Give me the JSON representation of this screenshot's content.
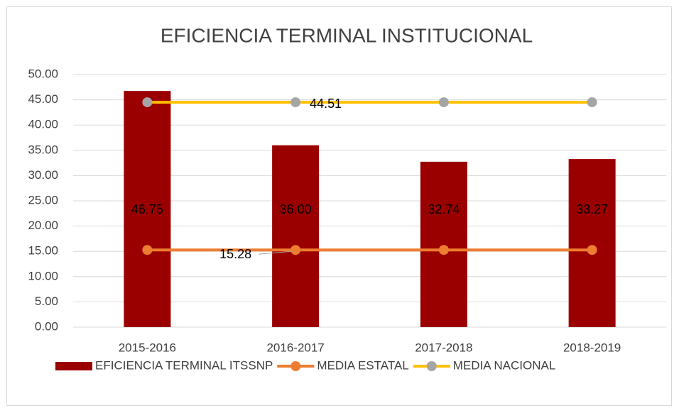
{
  "chart_data": {
    "type": "bar",
    "title": "EFICIENCIA TERMINAL INSTITUCIONAL",
    "categories": [
      "2015-2016",
      "2016-2017",
      "2017-2018",
      "2018-2019"
    ],
    "series": [
      {
        "name": "EFICIENCIA TERMINAL ITSSNP",
        "type": "bar",
        "color": "#9b0000",
        "values": [
          46.75,
          36.0,
          32.74,
          33.27
        ],
        "value_labels": [
          "46.75",
          "36.00",
          "32.74",
          "33.27"
        ]
      },
      {
        "name": "MEDIA ESTATAL",
        "type": "line",
        "color": "#ed7d31",
        "marker_color": "#ed7d31",
        "values": [
          15.28,
          15.28,
          15.28,
          15.28
        ],
        "value_labels": [
          null,
          "15.28",
          null,
          null
        ]
      },
      {
        "name": "MEDIA NACIONAL",
        "type": "line",
        "color": "#ffc000",
        "marker_color": "#a5a5a5",
        "values": [
          44.51,
          44.51,
          44.51,
          44.51
        ],
        "value_labels": [
          null,
          "44.51",
          null,
          null
        ]
      }
    ],
    "ylim": [
      0,
      50
    ],
    "yticks": [
      {
        "value": 0,
        "label": "0.00"
      },
      {
        "value": 5,
        "label": "5.00"
      },
      {
        "value": 10,
        "label": "10.00"
      },
      {
        "value": 15,
        "label": "15.00"
      },
      {
        "value": 20,
        "label": "20.00"
      },
      {
        "value": 25,
        "label": "25.00"
      },
      {
        "value": 30,
        "label": "30.00"
      },
      {
        "value": 35,
        "label": "35.00"
      },
      {
        "value": 40,
        "label": "40.00"
      },
      {
        "value": 45,
        "label": "45.00"
      },
      {
        "value": 50,
        "label": "50.00"
      }
    ],
    "grid": true,
    "legend": "bottom"
  }
}
